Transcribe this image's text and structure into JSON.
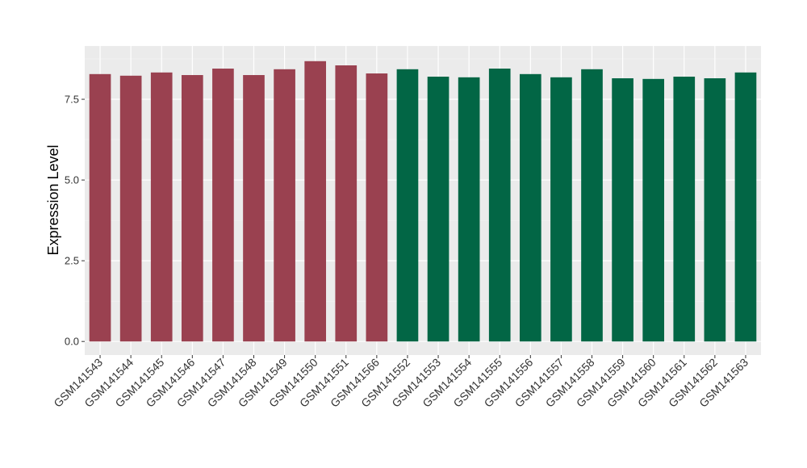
{
  "chart_data": {
    "type": "bar",
    "title": "",
    "xlabel": "",
    "ylabel": "Expression Level",
    "ylim": [
      -0.42,
      9.15
    ],
    "yticks": [
      "0.0",
      "2.5",
      "5.0",
      "7.5"
    ],
    "ytick_values": [
      0,
      2.5,
      5,
      7.5
    ],
    "grid": true,
    "categories": [
      "GSM141543",
      "GSM141544",
      "GSM141545",
      "GSM141546",
      "GSM141547",
      "GSM141548",
      "GSM141549",
      "GSM141550",
      "GSM141551",
      "GSM141566",
      "GSM141552",
      "GSM141553",
      "GSM141554",
      "GSM141555",
      "GSM141556",
      "GSM141557",
      "GSM141558",
      "GSM141559",
      "GSM141560",
      "GSM141561",
      "GSM141562",
      "GSM141563"
    ],
    "values": [
      8.28,
      8.23,
      8.33,
      8.25,
      8.45,
      8.25,
      8.43,
      8.68,
      8.55,
      8.3,
      8.43,
      8.2,
      8.18,
      8.45,
      8.28,
      8.18,
      8.43,
      8.15,
      8.13,
      8.2,
      8.15,
      8.33
    ],
    "groups": [
      0,
      0,
      0,
      0,
      0,
      0,
      0,
      0,
      0,
      0,
      1,
      1,
      1,
      1,
      1,
      1,
      1,
      1,
      1,
      1,
      1,
      1
    ],
    "group_colors": [
      "#9a4150",
      "#026645"
    ]
  }
}
